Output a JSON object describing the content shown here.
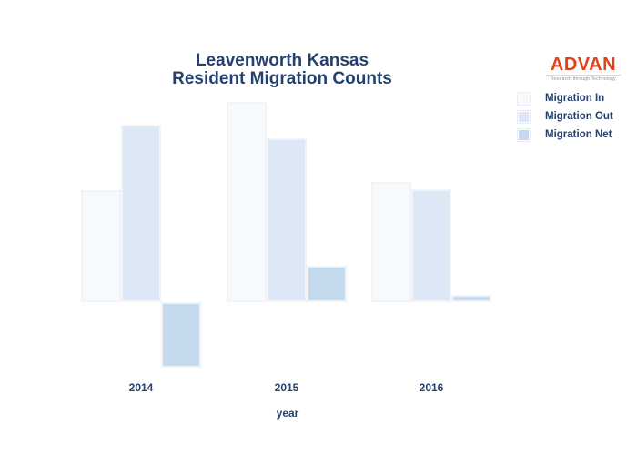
{
  "title": {
    "line1": "Leavenworth Kansas",
    "line2": "Resident Migration Counts",
    "color": "#24406e"
  },
  "logo": {
    "text": "ADVAN",
    "tagline": "Research through Technology",
    "text_color": "#e2421b",
    "tagline_color": "#8f8f8f"
  },
  "chart_data": {
    "type": "bar",
    "title": "Leavenworth Kansas Resident Migration Counts",
    "categories": [
      "2014",
      "2015",
      "2016"
    ],
    "series": [
      {
        "name": "Migration In",
        "color": "#f6fafd",
        "values": [
          1230,
          2200,
          1320
        ]
      },
      {
        "name": "Migration Out",
        "color": "#dce8f5",
        "values": [
          1950,
          1800,
          1240
        ]
      },
      {
        "name": "Migration Net",
        "color": "#c6daee",
        "values": [
          -720,
          400,
          80
        ]
      }
    ],
    "xlabel": "year",
    "ylabel": "",
    "legend_position": "upper right",
    "legend_entries": [
      "Migration In",
      "Migration Out",
      "Migration Net"
    ],
    "grid": false,
    "y_axis_labels_visible": false,
    "baseline": 0
  }
}
